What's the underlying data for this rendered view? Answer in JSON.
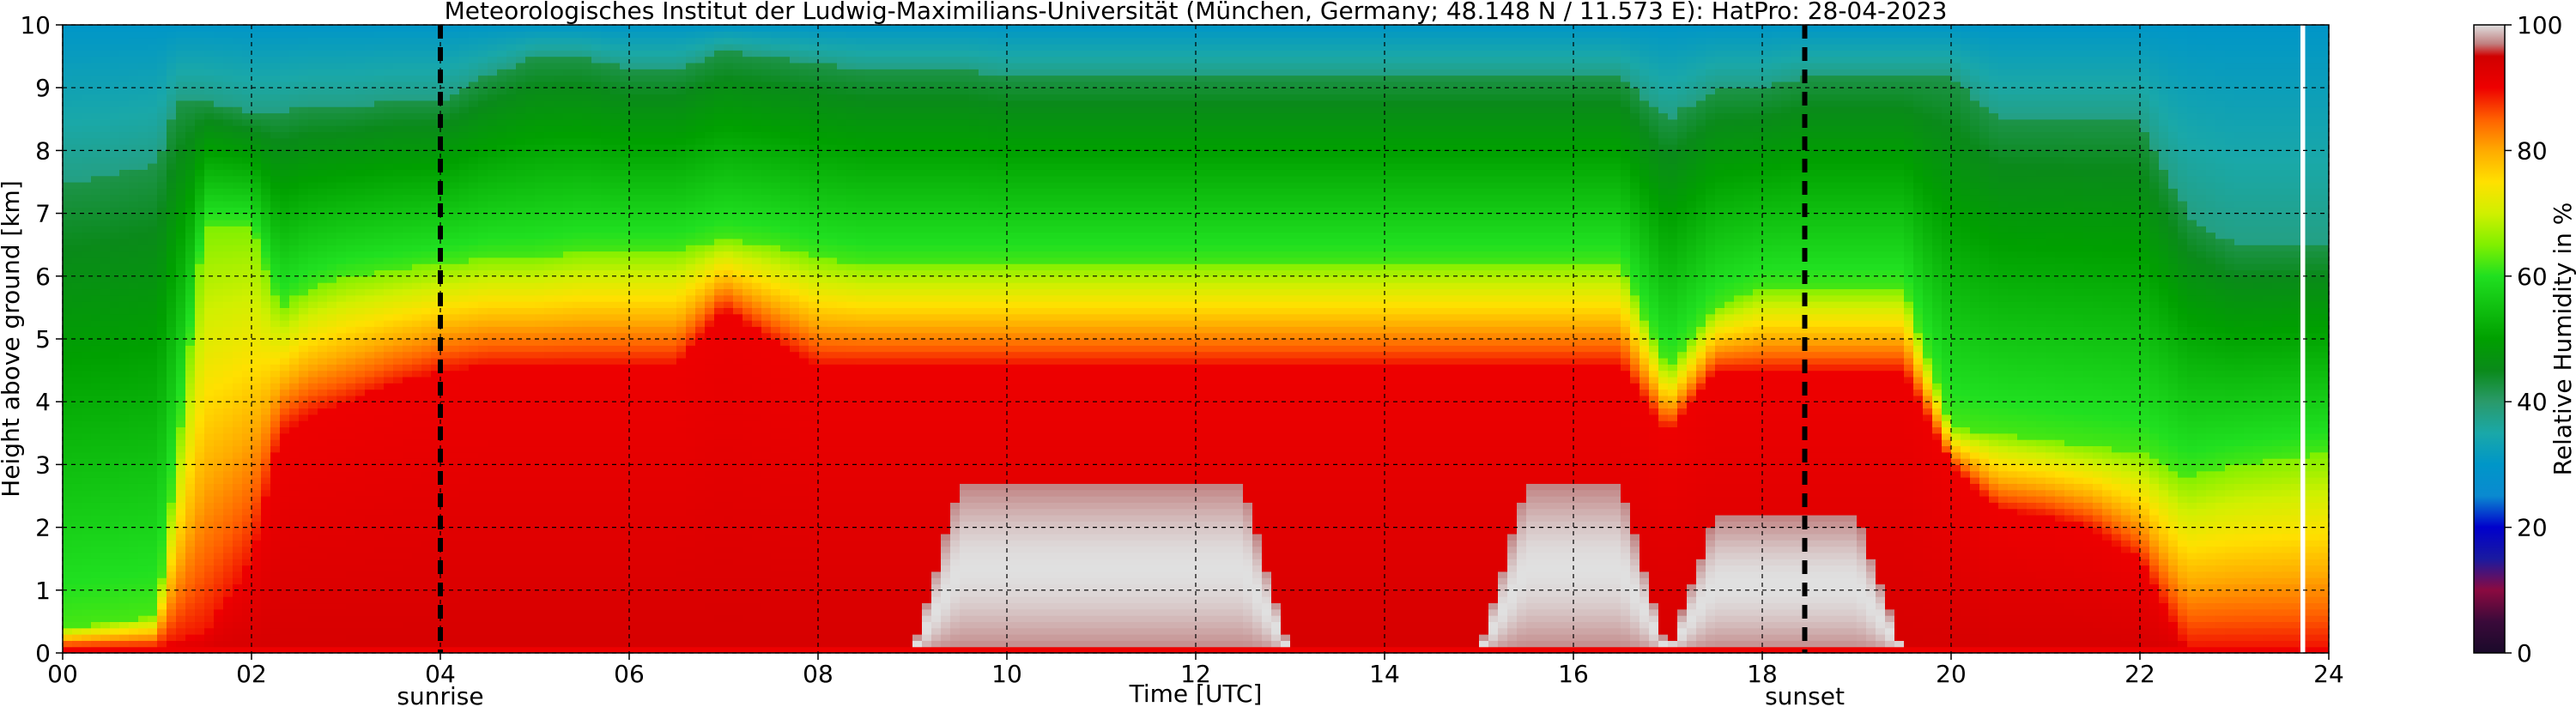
{
  "chart_data": {
    "type": "heatmap",
    "title": "Meteorologisches Institut der Ludwig-Maximilians-Universität (München, Germany; 48.148 N / 11.573 E):    HatPro: 28-04-2023",
    "xlabel": "Time [UTC]",
    "ylabel": "Height above ground [km]",
    "xlim": [
      0,
      24
    ],
    "ylim": [
      0,
      10
    ],
    "x_ticks": [
      "00",
      "02",
      "04",
      "06",
      "08",
      "10",
      "12",
      "14",
      "16",
      "18",
      "20",
      "22",
      "24"
    ],
    "y_ticks": [
      "0",
      "1",
      "2",
      "3",
      "4",
      "5",
      "6",
      "7",
      "8",
      "9",
      "10"
    ],
    "grid": true,
    "colorbar": {
      "label": "Relative Humidity in %",
      "ticks": [
        "0",
        "20",
        "40",
        "60",
        "80",
        "100"
      ],
      "range": [
        0,
        100
      ],
      "stops": [
        {
          "v": 0,
          "c": "#1a0a2a"
        },
        {
          "v": 5,
          "c": "#3a0a3a"
        },
        {
          "v": 10,
          "c": "#8b0a40"
        },
        {
          "v": 15,
          "c": "#1a1aa0"
        },
        {
          "v": 20,
          "c": "#0000cc"
        },
        {
          "v": 25,
          "c": "#0a8ad0"
        },
        {
          "v": 30,
          "c": "#0096c8"
        },
        {
          "v": 35,
          "c": "#1aa8a8"
        },
        {
          "v": 40,
          "c": "#2a9a6a"
        },
        {
          "v": 45,
          "c": "#0a8a1a"
        },
        {
          "v": 50,
          "c": "#00a000"
        },
        {
          "v": 55,
          "c": "#10c010"
        },
        {
          "v": 60,
          "c": "#20e020"
        },
        {
          "v": 65,
          "c": "#80f000"
        },
        {
          "v": 70,
          "c": "#d0f000"
        },
        {
          "v": 75,
          "c": "#ffe000"
        },
        {
          "v": 80,
          "c": "#ffaa00"
        },
        {
          "v": 85,
          "c": "#ff6000"
        },
        {
          "v": 90,
          "c": "#ee0000"
        },
        {
          "v": 95,
          "c": "#d00000"
        },
        {
          "v": 97,
          "c": "#c08080"
        },
        {
          "v": 100,
          "c": "#e0e0e0"
        }
      ]
    },
    "vlines": [
      {
        "x": 4.0,
        "label": "sunrise"
      },
      {
        "x": 18.45,
        "label": "sunset"
      }
    ],
    "layers": {
      "description_keys": [
        "time_utc",
        "top_green_km",
        "yellow_top_km",
        "red_top_km",
        "saturated_top_km"
      ],
      "times": [
        0,
        0.5,
        1,
        1.2,
        1.5,
        2,
        2.3,
        2.6,
        3,
        3.5,
        4,
        4.5,
        5,
        5.5,
        6,
        6.5,
        7,
        7.5,
        8,
        8.5,
        9,
        9.5,
        10,
        10.5,
        11,
        11.5,
        12,
        12.5,
        13,
        13.5,
        14,
        14.5,
        15,
        15.5,
        16,
        16.5,
        17,
        17.5,
        18,
        18.5,
        19,
        19.5,
        20,
        20.5,
        21,
        21.5,
        22,
        22.5,
        23,
        23.5,
        24
      ],
      "green_top_km": [
        7.5,
        7.6,
        7.8,
        8.8,
        8.8,
        8.6,
        8.6,
        8.7,
        8.7,
        8.8,
        8.8,
        9.2,
        9.5,
        9.5,
        9.3,
        9.3,
        9.6,
        9.5,
        9.4,
        9.3,
        9.3,
        9.3,
        9.2,
        9.2,
        9.2,
        9.2,
        9.2,
        9.2,
        9.2,
        9.2,
        9.2,
        9.2,
        9.2,
        9.2,
        9.2,
        9.2,
        8.5,
        9.0,
        9.0,
        9.2,
        9.2,
        9.2,
        9.2,
        8.5,
        8.5,
        8.5,
        8.5,
        7.0,
        6.5,
        6.5,
        6.5
      ],
      "yellow_top_km": [
        0.4,
        0.5,
        0.6,
        3.0,
        6.8,
        6.8,
        5.5,
        5.8,
        6.0,
        6.1,
        6.2,
        6.3,
        6.3,
        6.4,
        6.4,
        6.4,
        6.6,
        6.5,
        6.3,
        6.2,
        6.2,
        6.2,
        6.2,
        6.2,
        6.2,
        6.2,
        6.2,
        6.2,
        6.2,
        6.2,
        6.2,
        6.2,
        6.2,
        6.2,
        6.2,
        6.2,
        4.5,
        5.5,
        5.8,
        5.8,
        5.8,
        5.8,
        3.6,
        3.5,
        3.4,
        3.3,
        3.2,
        2.8,
        3.0,
        3.1,
        3.2
      ],
      "red_top_km": [
        0.1,
        0.1,
        0.1,
        0.2,
        0.3,
        1.5,
        3.5,
        3.8,
        4.0,
        4.3,
        4.5,
        4.6,
        4.6,
        4.6,
        4.6,
        4.6,
        5.5,
        5.0,
        4.6,
        4.6,
        4.6,
        4.6,
        4.6,
        4.6,
        4.6,
        4.6,
        4.6,
        4.6,
        4.6,
        4.6,
        4.6,
        4.6,
        4.6,
        4.6,
        4.6,
        4.6,
        3.5,
        4.5,
        4.5,
        4.5,
        4.5,
        4.5,
        3.0,
        2.3,
        2.2,
        2.0,
        1.5,
        0.1,
        0.1,
        0.1,
        0.1
      ],
      "saturated_top_km": [
        0,
        0,
        0,
        0,
        0,
        0,
        0,
        0,
        0,
        0,
        0,
        0,
        0,
        0,
        0,
        0,
        0,
        0,
        0,
        0,
        0,
        2.7,
        2.7,
        2.7,
        2.7,
        2.7,
        2.7,
        2.7,
        0,
        0,
        0,
        0,
        0,
        2.7,
        2.7,
        2.7,
        0,
        2.2,
        2.2,
        2.2,
        2.2,
        0,
        0,
        0,
        0,
        0,
        0,
        0,
        0,
        0,
        0
      ]
    },
    "missing_data": {
      "from_time": 23.7,
      "to_time": 23.75,
      "color": "#ffffff"
    }
  }
}
